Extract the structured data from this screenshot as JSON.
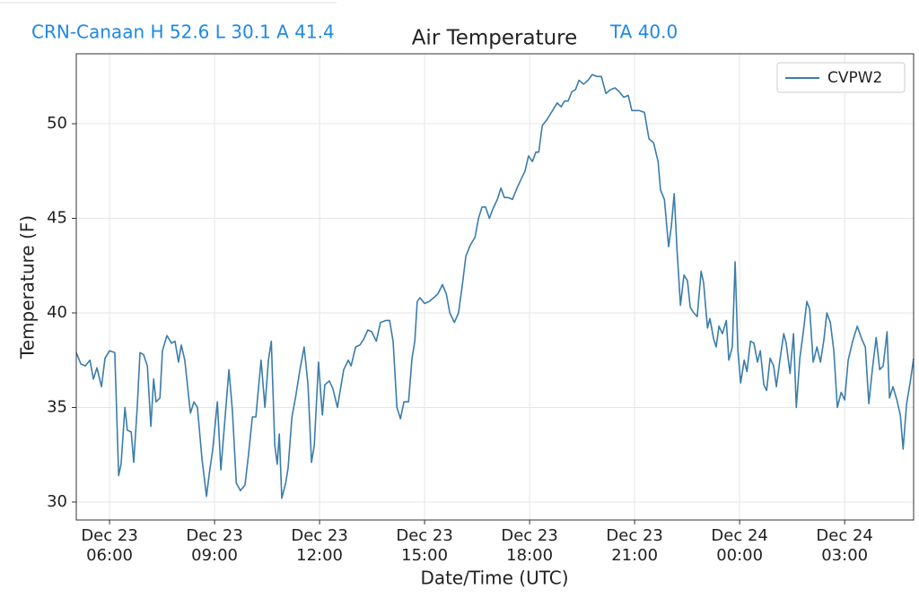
{
  "chart_data": {
    "type": "line",
    "title": "Air Temperature",
    "annotations": [
      "CRN-Canaan H 52.6 L 30.1 A 41.4",
      "TA 40.0"
    ],
    "xlabel": "Date/Time (UTC)",
    "ylabel": "Temperature (F)",
    "x": [
      5.05,
      5.18,
      5.31,
      5.44,
      5.54,
      5.64,
      5.77,
      5.87,
      6.0,
      6.15,
      6.26,
      6.33,
      6.44,
      6.51,
      6.62,
      6.69,
      6.79,
      6.87,
      6.97,
      7.08,
      7.18,
      7.26,
      7.33,
      7.44,
      7.51,
      7.64,
      7.77,
      7.87,
      7.97,
      8.05,
      8.15,
      8.31,
      8.41,
      8.51,
      8.64,
      8.77,
      8.85,
      8.95,
      9.08,
      9.18,
      9.28,
      9.41,
      9.51,
      9.62,
      9.74,
      9.87,
      9.97,
      10.08,
      10.18,
      10.33,
      10.44,
      10.54,
      10.62,
      10.72,
      10.79,
      10.85,
      10.92,
      11.03,
      11.1,
      11.21,
      11.31,
      11.44,
      11.56,
      11.67,
      11.77,
      11.85,
      11.97,
      12.08,
      12.15,
      12.28,
      12.38,
      12.51,
      12.59,
      12.69,
      12.82,
      12.9,
      13.03,
      13.15,
      13.26,
      13.38,
      13.49,
      13.62,
      13.74,
      13.9,
      14.0,
      14.1,
      14.21,
      14.31,
      14.41,
      14.54,
      14.64,
      14.72,
      14.79,
      14.87,
      15.0,
      15.13,
      15.26,
      15.38,
      15.51,
      15.62,
      15.72,
      15.85,
      15.97,
      16.08,
      16.18,
      16.31,
      16.44,
      16.54,
      16.64,
      16.74,
      16.85,
      16.95,
      17.08,
      17.18,
      17.28,
      17.38,
      17.51,
      17.64,
      17.74,
      17.87,
      17.97,
      18.08,
      18.18,
      18.26,
      18.36,
      18.49,
      18.59,
      18.69,
      18.79,
      18.9,
      19.0,
      19.1,
      19.21,
      19.31,
      19.41,
      19.54,
      19.67,
      19.79,
      19.92,
      20.05,
      20.18,
      20.31,
      20.44,
      20.56,
      20.69,
      20.82,
      20.92,
      21.13,
      21.28,
      21.41,
      21.54,
      21.67,
      21.74,
      21.85,
      21.97,
      22.05,
      22.13,
      22.21,
      22.31,
      22.41,
      22.51,
      22.59,
      22.69,
      22.79,
      22.9,
      22.97,
      23.08,
      23.15,
      23.26,
      23.33,
      23.41,
      23.51,
      23.62,
      23.69,
      23.79,
      23.87,
      23.95,
      24.03,
      24.13,
      24.21,
      24.31,
      24.41,
      24.51,
      24.59,
      24.69,
      24.77,
      24.87,
      24.97,
      25.05,
      25.15,
      25.26,
      25.33,
      25.44,
      25.54,
      25.62,
      25.72,
      25.82,
      25.92,
      26.0,
      26.1,
      26.21,
      26.31,
      26.41,
      26.49,
      26.59,
      26.69,
      26.79,
      26.9,
      27.0,
      27.1,
      27.23,
      27.36,
      27.49,
      27.59,
      27.69,
      27.79,
      27.9,
      28.0,
      28.1,
      28.21,
      28.28,
      28.38,
      28.49,
      28.59,
      28.67,
      28.77,
      28.87,
      28.97
    ],
    "series": [
      {
        "name": "CVPW2",
        "color": "#3a7dab",
        "values": [
          37.9,
          37.3,
          37.2,
          37.5,
          36.5,
          37.1,
          36.1,
          37.6,
          38.0,
          37.9,
          31.4,
          32.0,
          35.0,
          33.8,
          33.7,
          32.1,
          35.0,
          37.9,
          37.8,
          37.2,
          34.0,
          36.5,
          35.3,
          35.5,
          38.0,
          38.8,
          38.4,
          38.5,
          37.4,
          38.3,
          37.5,
          34.7,
          35.3,
          35.0,
          32.3,
          30.3,
          31.5,
          32.8,
          35.3,
          31.7,
          34.0,
          37.0,
          34.8,
          31.0,
          30.6,
          30.9,
          32.5,
          34.5,
          34.5,
          37.5,
          35.0,
          37.5,
          38.5,
          33.0,
          32.0,
          33.6,
          30.2,
          31.0,
          31.8,
          34.5,
          35.5,
          37.0,
          38.2,
          36.2,
          32.1,
          33.0,
          37.4,
          34.6,
          36.2,
          36.4,
          36.0,
          35.0,
          35.9,
          37.0,
          37.5,
          37.2,
          38.2,
          38.3,
          38.6,
          39.1,
          39.0,
          38.5,
          39.5,
          39.6,
          39.6,
          38.5,
          35.0,
          34.4,
          35.3,
          35.3,
          37.6,
          38.5,
          40.6,
          40.8,
          40.5,
          40.6,
          40.8,
          41.0,
          41.5,
          41.0,
          40.0,
          39.5,
          40.0,
          41.5,
          43.0,
          43.6,
          44.0,
          45.0,
          45.6,
          45.6,
          45.0,
          45.5,
          46.0,
          46.6,
          46.1,
          46.1,
          46.0,
          46.6,
          47.0,
          47.5,
          48.3,
          48.0,
          48.5,
          48.5,
          49.9,
          50.2,
          50.5,
          50.8,
          51.1,
          50.9,
          51.2,
          51.2,
          51.7,
          51.8,
          52.3,
          52.1,
          52.3,
          52.6,
          52.5,
          52.5,
          51.6,
          51.8,
          51.9,
          51.7,
          51.4,
          51.5,
          50.7,
          50.7,
          50.6,
          49.2,
          49.0,
          48.0,
          46.5,
          46.0,
          43.5,
          44.6,
          46.3,
          43.4,
          40.4,
          42.0,
          41.7,
          40.3,
          40.0,
          39.8,
          42.2,
          41.6,
          39.2,
          39.7,
          38.6,
          38.2,
          39.3,
          38.9,
          39.6,
          37.5,
          38.2,
          42.7,
          38.0,
          36.3,
          37.5,
          36.9,
          38.5,
          38.4,
          37.4,
          38.0,
          36.2,
          35.9,
          37.6,
          37.2,
          36.1,
          37.5,
          38.9,
          38.4,
          36.8,
          38.9,
          35.0,
          37.6,
          39.0,
          40.6,
          40.2,
          37.4,
          38.2,
          37.4,
          38.6,
          40.0,
          39.5,
          38.0,
          35.0,
          35.8,
          35.4,
          37.5,
          38.5,
          39.3,
          38.6,
          38.2,
          35.2,
          37.0,
          38.7,
          37.0,
          37.2,
          39.0,
          35.5,
          36.1,
          35.4,
          34.6,
          32.8,
          35.2,
          36.3,
          37.6
        ]
      }
    ],
    "xlim": [
      5.05,
      28.97
    ],
    "xticks": [
      {
        "value": 6,
        "label": [
          "Dec 23",
          "06:00"
        ]
      },
      {
        "value": 9,
        "label": [
          "Dec 23",
          "09:00"
        ]
      },
      {
        "value": 12,
        "label": [
          "Dec 23",
          "12:00"
        ]
      },
      {
        "value": 15,
        "label": [
          "Dec 23",
          "15:00"
        ]
      },
      {
        "value": 18,
        "label": [
          "Dec 23",
          "18:00"
        ]
      },
      {
        "value": 21,
        "label": [
          "Dec 23",
          "21:00"
        ]
      },
      {
        "value": 24,
        "label": [
          "Dec 24",
          "00:00"
        ]
      },
      {
        "value": 27,
        "label": [
          "Dec 24",
          "03:00"
        ]
      }
    ],
    "ylim": [
      29.05,
      53.7
    ],
    "yticks": [
      30,
      35,
      40,
      45,
      50
    ],
    "grid": true,
    "legend": "upper right"
  }
}
